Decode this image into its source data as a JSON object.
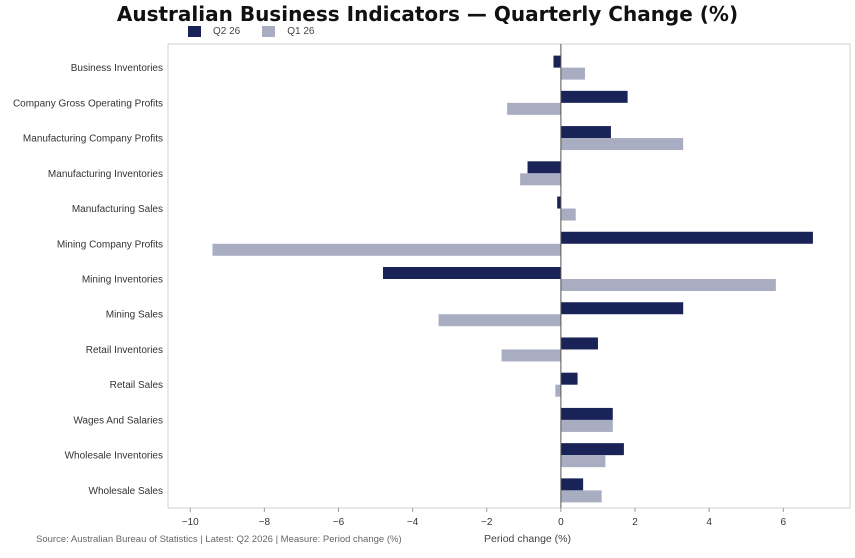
{
  "chart_data": {
    "type": "bar",
    "orientation": "horizontal",
    "title": "Australian Business Indicators — Quarterly Change (%)",
    "xlabel": "Period change (%)",
    "ylabel": "",
    "xlim": [
      -10.6,
      7.8
    ],
    "xticks": [
      -10,
      -8,
      -6,
      -4,
      -2,
      0,
      2,
      4,
      6
    ],
    "xtick_labels": [
      "−10",
      "−8",
      "−6",
      "−4",
      "−2",
      "0",
      "2",
      "4",
      "6"
    ],
    "grid": false,
    "legend_position": "top-left",
    "categories": [
      "Business Inventories",
      "Company Gross Operating Profits",
      "Manufacturing Company Profits",
      "Manufacturing Inventories",
      "Manufacturing Sales",
      "Mining Company Profits",
      "Mining Inventories",
      "Mining Sales",
      "Retail Inventories",
      "Retail Sales",
      "Wages And Salaries",
      "Wholesale Inventories",
      "Wholesale Sales"
    ],
    "series": [
      {
        "name": "Q2 26",
        "color": "#1a2357",
        "values": [
          -0.2,
          1.8,
          1.35,
          -0.9,
          -0.1,
          6.8,
          -4.8,
          3.3,
          1.0,
          0.45,
          1.4,
          1.7,
          0.6
        ]
      },
      {
        "name": "Q1 26",
        "color": "#a8adc2",
        "values": [
          0.65,
          -1.45,
          3.3,
          -1.1,
          0.4,
          -9.4,
          5.8,
          -3.3,
          -1.6,
          -0.15,
          1.4,
          1.2,
          1.1
        ]
      }
    ],
    "source": "Source: Australian Bureau of Statistics | Latest: Q2 2026 | Measure: Period change (%)"
  }
}
